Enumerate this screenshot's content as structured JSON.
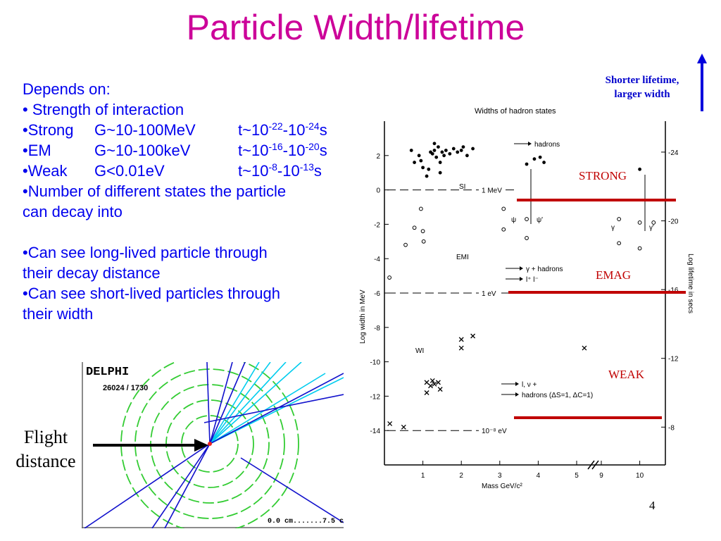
{
  "slide": {
    "title": "Particle Width/lifetime",
    "page_number": "4",
    "depends_on": "Depends on:",
    "bullet_strength": "• Strength of interaction",
    "strong": {
      "name": "•Strong",
      "width": "G~10-100MeV",
      "t_prefix": "t~10",
      "exp1": "-22",
      "dash": "-10",
      "exp2": "-24",
      "unit": "s"
    },
    "em": {
      "name": "•EM",
      "width": "G~10-100keV",
      "t_prefix": "t~10",
      "exp1": "-16",
      "dash": "-10",
      "exp2": "-20",
      "unit": "s"
    },
    "weak": {
      "name": "•Weak",
      "width": "G<0.01eV",
      "t_prefix": "t~10",
      "exp1": "-8",
      "dash": "-10",
      "exp2": "-13",
      "unit": "s"
    },
    "bullet_states_1": "•Number of different states the particle",
    "bullet_states_2": "can decay into",
    "bullet_long_1": "•Can see long-lived particle through",
    "bullet_long_2": "their decay distance",
    "bullet_short_1": "•Can see short-lived particles through",
    "bullet_short_2": "their width",
    "shorter_1": "Shorter lifetime,",
    "shorter_2": "larger width",
    "flight_1": "Flight",
    "flight_2": "distance",
    "label_strong": "STRONG",
    "label_emag": "EMAG",
    "label_weak": "WEAK"
  },
  "delphi": {
    "name": "DELPHI",
    "event": "26024 /  1730",
    "scale": "0.0 cm.......7.5 c"
  },
  "chart_data": {
    "type": "scatter",
    "title": "Widths of hadron states",
    "xlabel": "Mass GeV/c²",
    "ylabel": "Log width in MeV",
    "y2label": "Log lifetime in secs",
    "x_ticks": [
      "1",
      "2",
      "3",
      "4",
      "5",
      "9",
      "10"
    ],
    "y_ticks": [
      "2",
      "0",
      "-2",
      "-4",
      "-6",
      "-8",
      "-10",
      "-12",
      "-14"
    ],
    "y2_ticks": [
      "-24",
      "-20",
      "-16",
      "-12",
      "-8"
    ],
    "ylim": [
      -16,
      4
    ],
    "region_labels": [
      "SI",
      "EMI",
      "WI"
    ],
    "reference_lines": [
      {
        "label": "1 MeV",
        "y": 0
      },
      {
        "label": "1 eV",
        "y": -6
      },
      {
        "label": "10⁻⁸ eV",
        "y": -14
      }
    ],
    "legend_lines": [
      "hadrons",
      "γ + hadrons",
      "l⁺ l⁻",
      "l, ν +",
      "hadrons (ΔS=1, ΔC=1)"
    ],
    "particle_labels": [
      "ψ",
      "ψ'",
      "γ",
      "γ'"
    ],
    "series": [
      {
        "name": "SI",
        "marker": "dot",
        "points": [
          [
            0.7,
            2.3
          ],
          [
            0.78,
            1.6
          ],
          [
            0.9,
            2
          ],
          [
            0.95,
            1.7
          ],
          [
            1.0,
            1.3
          ],
          [
            1.1,
            0.8
          ],
          [
            1.2,
            2.2
          ],
          [
            1.25,
            2.1
          ],
          [
            1.3,
            2.3
          ],
          [
            1.35,
            1.9
          ],
          [
            1.4,
            2.5
          ],
          [
            1.45,
            1.6
          ],
          [
            1.5,
            2.2
          ],
          [
            1.55,
            2.0
          ],
          [
            1.6,
            2.3
          ],
          [
            1.7,
            2.1
          ],
          [
            1.8,
            2.4
          ],
          [
            1.9,
            2.2
          ],
          [
            2.0,
            2.3
          ],
          [
            2.05,
            2.5
          ],
          [
            2.15,
            2.0
          ],
          [
            2.3,
            2.4
          ],
          [
            1.3,
            2.7
          ],
          [
            1.15,
            1.2
          ],
          [
            3.7,
            1.5
          ],
          [
            3.9,
            1.8
          ],
          [
            4.05,
            1.9
          ],
          [
            4.15,
            1.6
          ],
          [
            10.0,
            1.2
          ],
          [
            1.45,
            1.0
          ]
        ]
      },
      {
        "name": "EMI",
        "marker": "circle",
        "points": [
          [
            0.13,
            -5.1
          ],
          [
            0.55,
            -3.2
          ],
          [
            0.78,
            -2.2
          ],
          [
            0.95,
            -1.1
          ],
          [
            1.0,
            -2.4
          ],
          [
            1.02,
            -3.0
          ],
          [
            3.1,
            -1.1
          ],
          [
            3.7,
            -1.7
          ],
          [
            3.1,
            -2.3
          ],
          [
            3.7,
            -2.8
          ],
          [
            9.46,
            -1.7
          ],
          [
            10.0,
            -1.9
          ],
          [
            10.36,
            -1.9
          ],
          [
            9.46,
            -3.1
          ],
          [
            10.0,
            -3.4
          ]
        ]
      },
      {
        "name": "WI",
        "marker": "cross",
        "points": [
          [
            0.14,
            -13.6
          ],
          [
            0.5,
            -13.8
          ],
          [
            1.1,
            -11.2
          ],
          [
            1.2,
            -11.4
          ],
          [
            1.25,
            -11.1
          ],
          [
            1.3,
            -11.3
          ],
          [
            1.4,
            -11.2
          ],
          [
            1.45,
            -11.6
          ],
          [
            1.1,
            -11.8
          ],
          [
            2.0,
            -8.7
          ],
          [
            2.0,
            -9.2
          ],
          [
            2.3,
            -8.5
          ],
          [
            5.2,
            -9.2
          ]
        ]
      }
    ]
  }
}
